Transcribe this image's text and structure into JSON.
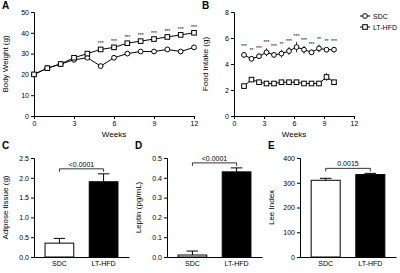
{
  "chart_data": [
    {
      "type": "line",
      "title": "A",
      "x_label": "Weeks",
      "y_label": "Body Weight (g)",
      "x": [
        0,
        1,
        2,
        3,
        4,
        5,
        6,
        7,
        8,
        9,
        10,
        11,
        12
      ],
      "series": [
        {
          "color": "#000000",
          "marker": "circle",
          "line_style": "solid",
          "values": [
            20,
            23,
            25,
            27,
            28,
            24,
            28,
            30,
            31,
            31,
            32,
            31,
            33
          ]
        },
        {
          "color": "#000000",
          "marker": "square",
          "line_style": "solid",
          "values": [
            20,
            23,
            25,
            28,
            30,
            32,
            33,
            35,
            36,
            37,
            38,
            39,
            40
          ]
        }
      ],
      "xlim": [
        0,
        12
      ],
      "xticks": [
        0,
        3,
        6,
        9,
        12
      ],
      "ylim": [
        0,
        50
      ],
      "yticks": [
        0,
        10,
        20,
        30,
        40,
        50
      ],
      "annotations": [
        {
          "x": 5,
          "text": "***"
        },
        {
          "x": 6,
          "text": "***"
        },
        {
          "x": 7,
          "text": "***"
        },
        {
          "x": 8,
          "text": "***"
        },
        {
          "x": 9,
          "text": "***"
        },
        {
          "x": 10,
          "text": "***"
        },
        {
          "x": 11,
          "text": "***"
        },
        {
          "x": 12,
          "text": "***"
        }
      ]
    },
    {
      "type": "line",
      "title": "B",
      "x_label": "Weeks",
      "y_label": "Food Intake (g)",
      "legend": "upper right",
      "x": [
        1,
        1.75,
        2.5,
        3.25,
        4,
        4.75,
        5.5,
        6.25,
        7,
        7.75,
        8.5,
        9.25,
        10
      ],
      "series": [
        {
          "name": "SDC",
          "color": "#000000",
          "marker": "circle",
          "line_style": "solid",
          "values": [
            4.7,
            4.4,
            4.6,
            4.9,
            4.7,
            4.8,
            5.0,
            5.3,
            5.1,
            4.9,
            5.2,
            5.1,
            5.1
          ],
          "errors": [
            0.2,
            0.2,
            0.2,
            0.3,
            0.2,
            0.3,
            0.3,
            0.4,
            0.3,
            0.2,
            0.3,
            0.2,
            0.2
          ]
        },
        {
          "name": "LT-HFD",
          "color": "#000000",
          "marker": "square",
          "line_style": "solid",
          "values": [
            2.3,
            2.8,
            2.6,
            2.5,
            2.5,
            2.6,
            2.6,
            2.6,
            2.5,
            2.5,
            2.5,
            3.0,
            2.6
          ],
          "errors": [
            0.1,
            0.1,
            0.1,
            0.1,
            0.1,
            0.1,
            0.1,
            0.1,
            0.1,
            0.1,
            0.1,
            0.3,
            0.1
          ]
        }
      ],
      "xlim": [
        0,
        12
      ],
      "xticks": [
        0,
        3,
        6,
        9,
        12
      ],
      "ylim": [
        0,
        8
      ],
      "yticks": [
        0,
        2,
        4,
        6,
        8
      ],
      "annotations": [
        {
          "x": 1,
          "text": "***"
        },
        {
          "x": 1.75,
          "text": "**"
        },
        {
          "x": 2.5,
          "text": "***"
        },
        {
          "x": 3.25,
          "text": "***"
        },
        {
          "x": 4,
          "text": "***"
        },
        {
          "x": 4.75,
          "text": "**"
        },
        {
          "x": 5.5,
          "text": "***"
        },
        {
          "x": 6.25,
          "text": "***"
        },
        {
          "x": 7,
          "text": "***"
        },
        {
          "x": 7.75,
          "text": "***"
        },
        {
          "x": 8.5,
          "text": "**"
        },
        {
          "x": 9.25,
          "text": "**"
        },
        {
          "x": 10,
          "text": "***"
        }
      ]
    },
    {
      "type": "bar",
      "title": "C",
      "y_label": "Adipose tissue (g)",
      "categories": [
        "SDC",
        "LT-HFD"
      ],
      "values": [
        0.35,
        1.9
      ],
      "errors": [
        0.12,
        0.2
      ],
      "colors": [
        "#ffffff",
        "#000000"
      ],
      "ylim": [
        0,
        2.5
      ],
      "yticks": [
        {
          "value": 0,
          "label": "0.0"
        },
        {
          "value": 0.5,
          "label": "0.5"
        },
        {
          "value": 1,
          "label": "1.0"
        },
        {
          "value": 1.5,
          "label": "1.5"
        },
        {
          "value": 2,
          "label": "2.0"
        },
        {
          "value": 2.5,
          "label": "2.5"
        }
      ],
      "annotations": [
        {
          "text": "<0.0001"
        }
      ]
    },
    {
      "type": "bar",
      "title": "D",
      "y_label": "Leptin (pg/mL)",
      "categories": [
        "SDC",
        "LT-HFD"
      ],
      "values": [
        0.01,
        0.43
      ],
      "errors": [
        0.02,
        0.02
      ],
      "colors": [
        "#ffffff",
        "#000000"
      ],
      "ylim": [
        0,
        0.5
      ],
      "yticks": [
        {
          "value": 0,
          "label": "0.0"
        },
        0.1,
        0.2,
        0.3,
        0.4,
        0.5
      ],
      "annotations": [
        {
          "text": "<0.0001"
        }
      ]
    },
    {
      "type": "bar",
      "title": "E",
      "y_label": "Lee Index",
      "categories": [
        "SDC",
        "LT-HFD"
      ],
      "values": [
        310,
        333
      ],
      "errors": [
        8,
        5
      ],
      "colors": [
        "#ffffff",
        "#000000"
      ],
      "ylim": [
        0,
        400
      ],
      "yticks": [
        0,
        100,
        200,
        300,
        400
      ],
      "annotations": [
        {
          "text": "0.0015"
        }
      ]
    }
  ]
}
